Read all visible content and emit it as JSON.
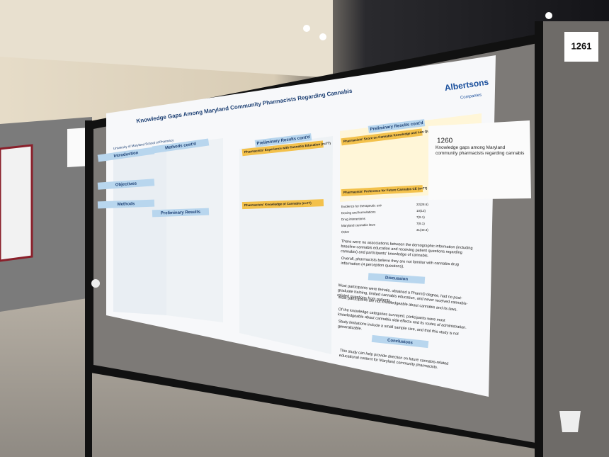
{
  "board_number": "1261",
  "side_card": {
    "number": "1260",
    "title": "Knowledge gaps among Maryland community pharmacists regarding cannabis"
  },
  "poster": {
    "title": "Knowledge Gaps Among Maryland Community Pharmacists Regarding Cannabis",
    "affiliation": "University of Maryland School of Pharmacy",
    "logo": [
      "Albertsons",
      "Companies"
    ],
    "sections": [
      "Introduction",
      "Methods cont'd",
      "Objectives",
      "Methods",
      "Preliminary Results",
      "Preliminary Results cont'd",
      "Preliminary Results cont'd",
      "Discussion",
      "Conclusions"
    ],
    "tables": [
      "Pharmacists' Experience with Cannabis Education (n=77)",
      "Pharmacists' Knowledge of Cannabis (n=77)",
      "Pharmacists' Score on Cannabis Knowledge and Law Questions",
      "Pharmacists' Preference for Future Cannabis CE (n=77)"
    ],
    "ce_rows": [
      "Evidence for therapeutic use",
      "Dosing and formulations",
      "Drug interactions",
      "Maryland cannabis laws",
      "Other"
    ],
    "ce_values": [
      "22(28.6)",
      "10(13)",
      "7(9.1)",
      "7(9.1)",
      "31(40.3)"
    ],
    "results_bullets": [
      "There were no associations between the demographic information (including baseline cannabis education and receiving patient questions regarding cannabis) and participants' knowledge of cannabis.",
      "Overall, pharmacists believe they are not familiar with cannabis drug information (4 perception questions)."
    ],
    "discussion_bullets": [
      "Most participants were female, obtained a PharmD degree, had no post-graduate training, limited cannabis education, and never received cannabis-related questions from patients.",
      "Most participants are not knowledgeable about cannabis and its laws.",
      "Of the knowledge categories surveyed, participants were most knowledgeable about cannabis side effects and its routes of administration.",
      "Study limitations include a small sample size, and that this study is not generalizable."
    ],
    "conclusion": "This study can help provide direction on future cannabis-related educational content for Maryland community pharmacists."
  }
}
